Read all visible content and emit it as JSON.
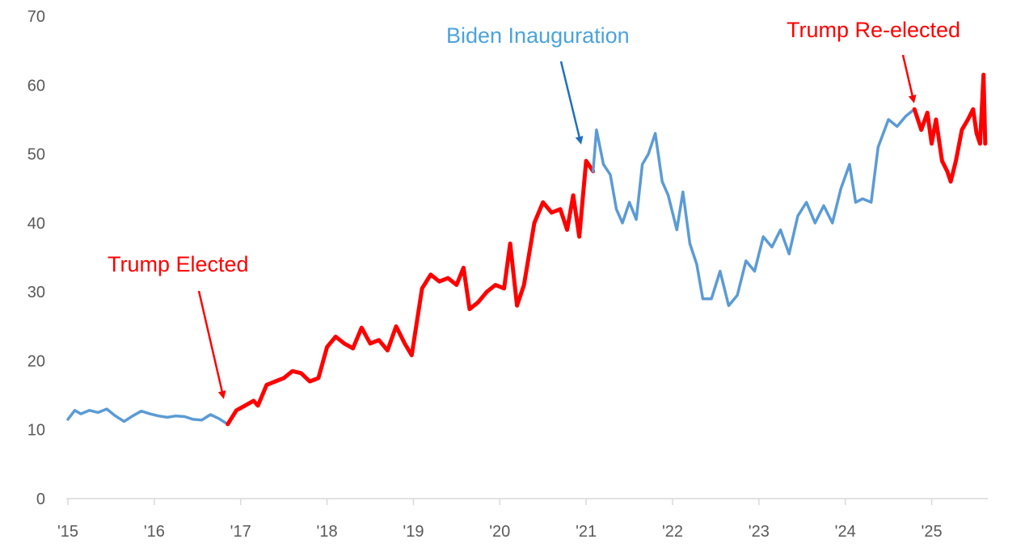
{
  "chart_data": {
    "type": "line",
    "title": "",
    "xlabel": "",
    "ylabel": "",
    "ylim": [
      0,
      70
    ],
    "xlim": [
      2015.0,
      2025.65
    ],
    "y_ticks": [
      "0",
      "10",
      "20",
      "30",
      "40",
      "50",
      "60",
      "70"
    ],
    "x_ticks": [
      "'15",
      "'16",
      "'17",
      "'18",
      "'19",
      "'20",
      "'21",
      "'22",
      "'23",
      "'24",
      "'25"
    ],
    "grid": false,
    "colors": {
      "blue": "#5b9bd5",
      "red": "#ff0000",
      "dark_blue_arrow": "#1f6fbf"
    },
    "series": [
      {
        "segment": "pre-2016 election",
        "color": "#5b9bd5",
        "x": [
          2015.0,
          2015.08,
          2015.15,
          2015.25,
          2015.35,
          2015.45,
          2015.55,
          2015.65,
          2015.75,
          2015.85,
          2015.95,
          2016.05,
          2016.15,
          2016.25,
          2016.35,
          2016.45,
          2016.55,
          2016.65,
          2016.75,
          2016.85
        ],
        "y": [
          11.5,
          12.8,
          12.3,
          12.8,
          12.5,
          13.0,
          12.0,
          11.2,
          12.0,
          12.7,
          12.3,
          12.0,
          11.8,
          12.0,
          11.9,
          11.5,
          11.4,
          12.2,
          11.6,
          10.8
        ]
      },
      {
        "segment": "Trump first term",
        "color": "#ff0000",
        "x": [
          2016.85,
          2016.95,
          2017.05,
          2017.15,
          2017.2,
          2017.3,
          2017.4,
          2017.5,
          2017.6,
          2017.7,
          2017.8,
          2017.9,
          2018.0,
          2018.1,
          2018.2,
          2018.3,
          2018.4,
          2018.5,
          2018.6,
          2018.7,
          2018.8,
          2018.9,
          2018.98,
          2019.1,
          2019.2,
          2019.3,
          2019.4,
          2019.5,
          2019.58,
          2019.65,
          2019.75,
          2019.85,
          2019.95,
          2020.05,
          2020.12,
          2020.2,
          2020.28,
          2020.4,
          2020.5,
          2020.6,
          2020.7,
          2020.78,
          2020.85,
          2020.92,
          2021.0,
          2021.08
        ],
        "y": [
          10.8,
          12.8,
          13.5,
          14.2,
          13.5,
          16.5,
          17.0,
          17.5,
          18.5,
          18.2,
          17.0,
          17.5,
          22.0,
          23.5,
          22.5,
          21.8,
          24.8,
          22.5,
          23.0,
          21.5,
          25.0,
          22.5,
          20.8,
          30.5,
          32.5,
          31.5,
          32.0,
          31.0,
          33.5,
          27.5,
          28.5,
          30.0,
          31.0,
          30.5,
          37.0,
          28.0,
          31.0,
          40.0,
          43.0,
          41.5,
          42.0,
          39.0,
          44.0,
          38.0,
          49.0,
          47.5
        ]
      },
      {
        "segment": "Biden term",
        "color": "#5b9bd5",
        "x": [
          2021.08,
          2021.12,
          2021.2,
          2021.28,
          2021.35,
          2021.42,
          2021.5,
          2021.58,
          2021.65,
          2021.72,
          2021.8,
          2021.88,
          2021.95,
          2022.05,
          2022.12,
          2022.2,
          2022.28,
          2022.35,
          2022.45,
          2022.55,
          2022.65,
          2022.75,
          2022.85,
          2022.95,
          2023.05,
          2023.15,
          2023.25,
          2023.35,
          2023.45,
          2023.55,
          2023.65,
          2023.75,
          2023.85,
          2023.95,
          2024.05,
          2024.12,
          2024.2,
          2024.3,
          2024.38,
          2024.5,
          2024.6,
          2024.7,
          2024.8
        ],
        "y": [
          47.5,
          53.5,
          48.5,
          47.0,
          42.0,
          40.0,
          43.0,
          40.5,
          48.5,
          50.0,
          53.0,
          46.0,
          44.0,
          39.0,
          44.5,
          37.0,
          34.0,
          29.0,
          29.0,
          33.0,
          28.0,
          29.5,
          34.5,
          33.0,
          38.0,
          36.5,
          39.0,
          35.5,
          41.0,
          43.0,
          40.0,
          42.5,
          40.0,
          45.0,
          48.5,
          43.0,
          43.5,
          43.0,
          51.0,
          55.0,
          54.0,
          55.5,
          56.5
        ]
      },
      {
        "segment": "Trump second term",
        "color": "#ff0000",
        "x": [
          2024.8,
          2024.88,
          2024.95,
          2025.0,
          2025.05,
          2025.12,
          2025.18,
          2025.22,
          2025.28,
          2025.35,
          2025.42,
          2025.48,
          2025.52,
          2025.56,
          2025.6,
          2025.62
        ],
        "y": [
          56.5,
          53.5,
          56.0,
          51.5,
          55.0,
          49.0,
          47.5,
          46.0,
          49.0,
          53.5,
          55.0,
          56.5,
          53.0,
          51.5,
          61.5,
          51.5
        ]
      }
    ],
    "annotations": [
      {
        "text": "Trump Elected",
        "color": "#ff0000"
      },
      {
        "text": "Biden Inauguration",
        "color": "#4ba3dc"
      },
      {
        "text": "Trump Re-elected",
        "color": "#ff0000"
      }
    ]
  }
}
